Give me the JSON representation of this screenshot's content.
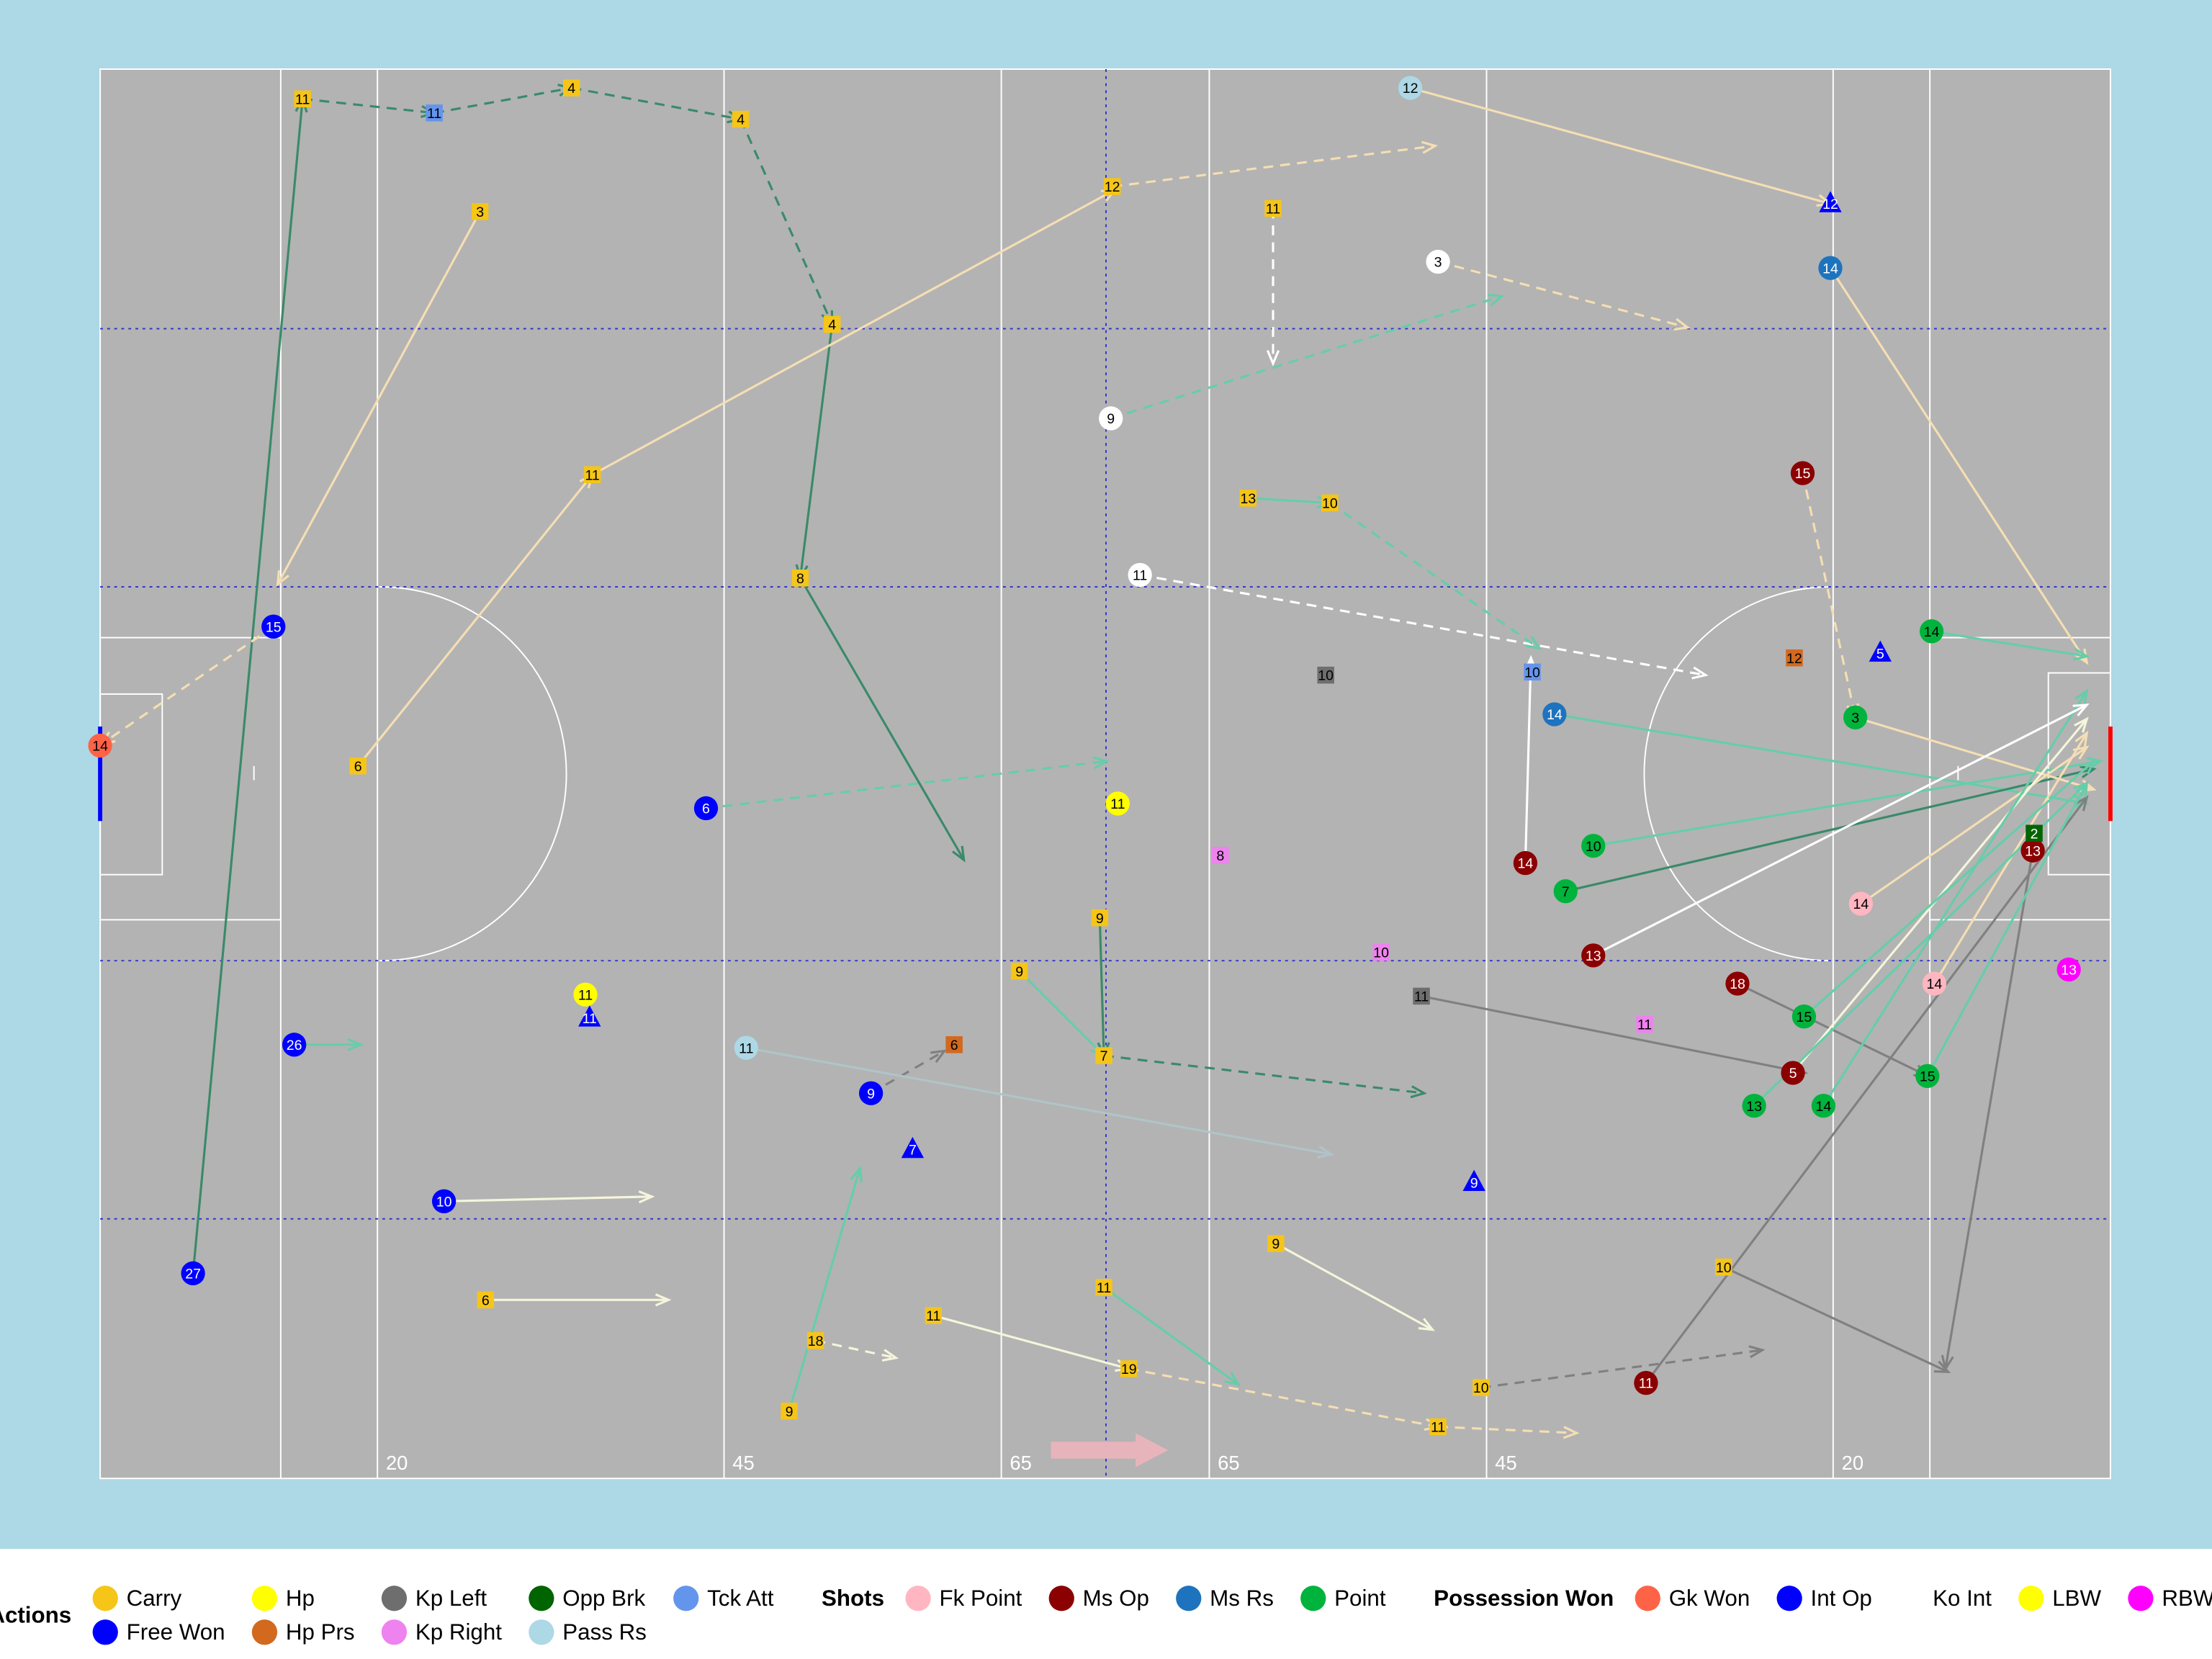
{
  "pitch": {
    "xlim": [
      0,
      145
    ],
    "ylim": [
      0,
      90
    ],
    "xticks": [
      20,
      45,
      65,
      {
        "value": 80,
        "label": "65"
      },
      {
        "value": 100,
        "label": "45"
      },
      {
        "value": 125,
        "label": "20"
      }
    ]
  },
  "actions": [
    {
      "category": "Free Won",
      "label": 27,
      "shape": "circle",
      "from": [
        6.7,
        76.9
      ],
      "to": [
        14.6,
        1.9
      ],
      "line_color": "#3a8a6a",
      "dashed": false
    },
    {
      "category": "Carry",
      "label": 11,
      "shape": "square",
      "from": [
        14.6,
        1.9
      ],
      "to": [
        24.1,
        2.8
      ],
      "line_color": "#3a8a6a",
      "dashed": true
    },
    {
      "category": "Tck Att",
      "label": 11,
      "shape": "square",
      "from": [
        24.1,
        2.8
      ],
      "to": [
        34.0,
        1.2
      ],
      "line_color": "#3a8a6a",
      "dashed": true
    },
    {
      "category": "Carry",
      "label": 4,
      "shape": "square",
      "from": [
        34.0,
        1.2
      ],
      "to": [
        46.2,
        3.2
      ],
      "line_color": "#3a8a6a",
      "dashed": true
    },
    {
      "category": "Carry",
      "label": 4,
      "shape": "square",
      "from": [
        46.2,
        3.2
      ],
      "to": [
        52.8,
        16.3
      ],
      "line_color": "#3a8a6a",
      "dashed": true
    },
    {
      "category": "Carry",
      "label": 4,
      "shape": "square",
      "from": [
        52.8,
        16.3
      ],
      "to": [
        50.5,
        32.5
      ],
      "line_color": "#3a8a6a",
      "dashed": false
    },
    {
      "category": "Carry",
      "label": 8,
      "shape": "square",
      "from": [
        50.5,
        32.5
      ],
      "to": [
        62.3,
        50.5
      ],
      "line_color": "#3a8a6a",
      "dashed": false
    },
    {
      "category": "Carry",
      "label": 3,
      "shape": "square",
      "from": [
        27.4,
        9.1
      ],
      "to": [
        12.8,
        32.9
      ],
      "line_color": "#f5deb3",
      "dashed": false
    },
    {
      "category": "Pass Rs",
      "label": 12,
      "shape": "circle",
      "from": [
        94.5,
        1.2
      ],
      "to": [
        124.8,
        8.6
      ],
      "line_color": "#f5deb3",
      "dashed": false
    },
    {
      "category": "Ko Int",
      "label": 9,
      "shape": "circle",
      "from": [
        72.9,
        22.3
      ],
      "to": [
        101.1,
        14.5
      ],
      "line_color": "#66cdaa",
      "dashed": true
    },
    {
      "category": "Ko Int",
      "label": 3,
      "shape": "circle",
      "from": [
        96.5,
        12.3
      ],
      "to": [
        114.5,
        16.5
      ],
      "line_color": "#f5deb3",
      "dashed": true
    },
    {
      "category": "Ms Rs",
      "label": 14,
      "shape": "circle",
      "from": [
        124.8,
        12.7
      ],
      "to": [
        143.3,
        37.9
      ],
      "line_color": "#f5deb3",
      "dashed": false
    },
    {
      "category": "Ms Op",
      "label": 15,
      "shape": "circle",
      "from": [
        122.8,
        25.8
      ],
      "to": [
        126.6,
        41.4
      ],
      "line_color": "#f5deb3",
      "dashed": true
    },
    {
      "category": "Ms Rs",
      "label": 14,
      "shape": "circle",
      "from": [
        104.9,
        41.2
      ],
      "to": [
        143.3,
        46.9
      ],
      "line_color": "#66cdaa",
      "dashed": false
    },
    {
      "category": "Point",
      "label": 10,
      "shape": "circle",
      "from": [
        107.7,
        49.6
      ],
      "to": [
        144.3,
        44.2
      ],
      "line_color": "#66cdaa",
      "dashed": false
    },
    {
      "category": "Point",
      "label": 7,
      "shape": "circle",
      "from": [
        105.7,
        52.5
      ],
      "to": [
        143.8,
        44.7
      ],
      "line_color": "#3a8a6a",
      "dashed": false
    },
    {
      "category": "Ms Op",
      "label": 13,
      "shape": "circle",
      "from": [
        139.4,
        49.9
      ],
      "to": [
        133.1,
        83.0
      ],
      "line_color": "#808080",
      "dashed": false
    },
    {
      "category": "Ms Op",
      "label": 11,
      "shape": "circle",
      "from": [
        111.5,
        83.9
      ],
      "to": [
        143.3,
        46.5
      ],
      "line_color": "#808080",
      "dashed": false
    },
    {
      "category": "Carry",
      "label": 10,
      "shape": "square",
      "from": [
        117.1,
        76.5
      ],
      "to": [
        133.3,
        83.2
      ],
      "line_color": "#808080",
      "dashed": false
    },
    {
      "category": "Int Op",
      "label": 6,
      "shape": "circle",
      "from": [
        43.7,
        47.2
      ],
      "to": [
        72.6,
        44.2
      ],
      "line_color": "#66cdaa",
      "dashed": true
    },
    {
      "category": "Int Op",
      "label": 9,
      "shape": "circle",
      "from": [
        55.6,
        65.4
      ],
      "to": [
        60.9,
        62.7
      ],
      "line_color": "#808080",
      "dashed": true
    },
    {
      "category": "Pass Rs",
      "label": 11,
      "shape": "circle",
      "from": [
        46.6,
        62.5
      ],
      "to": [
        88.8,
        69.3
      ],
      "line_color": "#b0c4c8",
      "dashed": false
    },
    {
      "category": "Int Op",
      "label": 10,
      "shape": "circle",
      "from": [
        24.8,
        72.3
      ],
      "to": [
        39.8,
        72.0
      ],
      "line_color": "#f5f5dc",
      "dashed": false
    },
    {
      "category": "Carry",
      "label": 6,
      "shape": "square",
      "from": [
        27.8,
        78.6
      ],
      "to": [
        41.0,
        78.6
      ],
      "line_color": "#f5f5dc",
      "dashed": false
    },
    {
      "category": "Int Op",
      "label": 26,
      "shape": "circle",
      "from": [
        14.0,
        62.3
      ],
      "to": [
        18.8,
        62.3
      ],
      "line_color": "#66cdaa",
      "dashed": false
    },
    {
      "category": "Int Op",
      "label": 15,
      "shape": "circle",
      "from": [
        12.5,
        35.6
      ],
      "to": [
        0.1,
        43.1
      ],
      "line_color": "#f5deb3",
      "dashed": true
    },
    {
      "category": "Ko Int",
      "label": 11,
      "shape": "circle",
      "from": [
        75.0,
        32.3
      ],
      "to": [
        115.8,
        38.7
      ],
      "line_color": "#ffffff",
      "dashed": true
    },
    {
      "category": "Point",
      "label": 14,
      "shape": "circle",
      "from": [
        132.1,
        35.9
      ],
      "to": [
        143.3,
        37.5
      ],
      "line_color": "#66cdaa",
      "dashed": false
    },
    {
      "category": "Point",
      "label": 3,
      "shape": "circle",
      "from": [
        126.6,
        41.4
      ],
      "to": [
        143.8,
        46.0
      ],
      "line_color": "#f5deb3",
      "dashed": false
    },
    {
      "category": "Fk Point",
      "label": 14,
      "shape": "circle",
      "from": [
        132.3,
        58.4
      ],
      "to": [
        143.3,
        42.4
      ],
      "line_color": "#f5deb3",
      "dashed": false
    },
    {
      "category": "Fk Point",
      "label": 14,
      "shape": "circle",
      "from": [
        127.0,
        53.3
      ],
      "to": [
        143.3,
        43.3
      ],
      "line_color": "#f5deb3",
      "dashed": false
    },
    {
      "category": "Ms Op",
      "label": 18,
      "shape": "circle",
      "from": [
        118.1,
        58.4
      ],
      "to": [
        131.8,
        64.3
      ],
      "line_color": "#808080",
      "dashed": false
    },
    {
      "category": "Ms Op",
      "label": 5,
      "shape": "circle",
      "from": [
        122.1,
        64.1
      ],
      "to": [
        143.3,
        41.5
      ],
      "line_color": "#f5f5dc",
      "dashed": false
    },
    {
      "category": "Point",
      "label": 13,
      "shape": "circle",
      "from": [
        119.3,
        66.2
      ],
      "to": [
        143.3,
        45.6
      ],
      "line_color": "#66cdaa",
      "dashed": false
    },
    {
      "category": "Point",
      "label": 14,
      "shape": "circle",
      "from": [
        124.3,
        66.2
      ],
      "to": [
        143.3,
        39.7
      ],
      "line_color": "#66cdaa",
      "dashed": false
    },
    {
      "category": "Point",
      "label": 15,
      "shape": "circle",
      "from": [
        122.9,
        60.5
      ],
      "to": [
        143.8,
        44.2
      ],
      "line_color": "#66cdaa",
      "dashed": false
    },
    {
      "category": "Point",
      "label": 15,
      "shape": "circle",
      "from": [
        131.8,
        64.3
      ],
      "to": [
        143.3,
        45.6
      ],
      "line_color": "#66cdaa",
      "dashed": false
    },
    {
      "category": "Ms Op",
      "label": 14,
      "shape": "circle",
      "from": [
        102.8,
        50.7
      ],
      "to": [
        103.2,
        37.6
      ],
      "line_color": "#ffffff",
      "dashed": false
    },
    {
      "category": "Ms Op",
      "label": 13,
      "shape": "circle",
      "from": [
        107.7,
        56.6
      ],
      "to": [
        143.3,
        40.6
      ],
      "line_color": "#ffffff",
      "dashed": false
    },
    {
      "category": "Kp Left",
      "label": 11,
      "shape": "square",
      "from": [
        95.3,
        59.2
      ],
      "to": [
        123.0,
        64.1
      ],
      "line_color": "#808080",
      "dashed": false
    },
    {
      "category": "Carry",
      "label": 11,
      "shape": "square",
      "from": [
        35.5,
        25.9
      ],
      "to": [
        73.2,
        7.7
      ],
      "line_color": "#f5deb3",
      "dashed": false
    },
    {
      "category": "Carry",
      "label": 6,
      "shape": "square",
      "from": [
        18.6,
        44.5
      ],
      "to": [
        35.5,
        25.9
      ],
      "line_color": "#f5deb3",
      "dashed": false
    },
    {
      "category": "Carry",
      "label": 12,
      "shape": "square",
      "from": [
        73.0,
        7.5
      ],
      "to": [
        96.3,
        4.9
      ],
      "line_color": "#f5deb3",
      "dashed": true
    },
    {
      "category": "Carry",
      "label": 11,
      "shape": "square",
      "from": [
        84.6,
        8.9
      ],
      "to": [
        84.6,
        18.8
      ],
      "line_color": "#ffffff",
      "dashed": true
    },
    {
      "category": "Carry",
      "label": 13,
      "shape": "square",
      "from": [
        82.8,
        27.4
      ],
      "to": [
        88.7,
        27.7
      ],
      "line_color": "#66cdaa",
      "dashed": false
    },
    {
      "category": "Carry",
      "label": 10,
      "shape": "square",
      "from": [
        88.7,
        27.7
      ],
      "to": [
        103.8,
        37.0
      ],
      "line_color": "#66cdaa",
      "dashed": true
    },
    {
      "category": "Carry",
      "label": 10,
      "shape": "square",
      "from": [
        99.6,
        84.2
      ],
      "to": [
        119.9,
        81.8
      ],
      "line_color": "#808080",
      "dashed": true
    },
    {
      "category": "Carry",
      "label": 11,
      "shape": "square",
      "from": [
        96.5,
        86.7
      ],
      "to": [
        106.5,
        87.1
      ],
      "line_color": "#f5deb3",
      "dashed": true
    },
    {
      "category": "Carry",
      "label": 19,
      "shape": "square",
      "from": [
        74.2,
        83.0
      ],
      "to": [
        96.5,
        86.7
      ],
      "line_color": "#f5deb3",
      "dashed": true
    },
    {
      "category": "Carry",
      "label": 11,
      "shape": "square",
      "from": [
        72.4,
        77.8
      ],
      "to": [
        82.1,
        84.0
      ],
      "line_color": "#66cdaa",
      "dashed": false
    },
    {
      "category": "Carry",
      "label": 9,
      "shape": "square",
      "from": [
        49.7,
        85.7
      ],
      "to": [
        54.8,
        70.2
      ],
      "line_color": "#66cdaa",
      "dashed": false
    },
    {
      "category": "Carry",
      "label": 18,
      "shape": "square",
      "from": [
        51.6,
        81.2
      ],
      "to": [
        57.4,
        82.3
      ],
      "line_color": "#f5f5dc",
      "dashed": true
    },
    {
      "category": "Carry",
      "label": 11,
      "shape": "square",
      "from": [
        60.1,
        79.6
      ],
      "to": [
        74.2,
        83.0
      ],
      "line_color": "#f5f5dc",
      "dashed": false
    },
    {
      "category": "Carry",
      "label": 9,
      "shape": "square",
      "from": [
        84.8,
        75.0
      ],
      "to": [
        96.1,
        80.5
      ],
      "line_color": "#f5f5dc",
      "dashed": false
    },
    {
      "category": "Carry",
      "label": 7,
      "shape": "square",
      "from": [
        72.4,
        63.0
      ],
      "to": [
        95.5,
        65.4
      ],
      "line_color": "#3a8a6a",
      "dashed": true
    },
    {
      "category": "Carry",
      "label": 9,
      "shape": "square",
      "from": [
        66.3,
        57.6
      ],
      "to": [
        72.4,
        63.0
      ],
      "line_color": "#66cdaa",
      "dashed": false
    },
    {
      "category": "Carry",
      "label": 9,
      "shape": "square",
      "from": [
        72.1,
        54.2
      ],
      "to": [
        72.4,
        63.0
      ],
      "line_color": "#3a8a6a",
      "dashed": false
    },
    {
      "category": "Gk Won",
      "label": 14,
      "shape": "circle",
      "from": [
        0.0,
        43.2
      ]
    },
    {
      "category": "Int Op",
      "label": 11,
      "shape": "triangle",
      "from": [
        35.3,
        60.6
      ]
    },
    {
      "category": "Int Op",
      "label": 7,
      "shape": "triangle",
      "from": [
        58.6,
        69.0
      ]
    },
    {
      "category": "Int Op",
      "label": 9,
      "shape": "triangle",
      "from": [
        99.1,
        71.1
      ]
    },
    {
      "category": "Int Op",
      "label": 12,
      "shape": "triangle",
      "from": [
        124.8,
        8.6
      ]
    },
    {
      "category": "Int Op",
      "label": 5,
      "shape": "triangle",
      "from": [
        128.4,
        37.3
      ]
    },
    {
      "category": "Tck Att",
      "label": 10,
      "shape": "square",
      "from": [
        103.3,
        38.5
      ]
    },
    {
      "category": "Hp",
      "label": 11,
      "shape": "circle",
      "from": [
        35.0,
        59.1
      ]
    },
    {
      "category": "Hp",
      "label": 11,
      "shape": "circle",
      "from": [
        73.4,
        46.9
      ]
    },
    {
      "category": "RBW Ov",
      "label": 13,
      "shape": "circle",
      "from": [
        142.0,
        57.5
      ]
    },
    {
      "category": "Hp Prs",
      "label": 12,
      "shape": "square",
      "from": [
        122.2,
        37.6
      ]
    },
    {
      "category": "Hp Prs",
      "label": 6,
      "shape": "square",
      "from": [
        61.6,
        62.3
      ]
    },
    {
      "category": "Kp Right",
      "label": 8,
      "shape": "square",
      "from": [
        80.8,
        50.2
      ]
    },
    {
      "category": "Kp Right",
      "label": 10,
      "shape": "square",
      "from": [
        92.4,
        56.4
      ]
    },
    {
      "category": "Kp Right",
      "label": 11,
      "shape": "square",
      "from": [
        111.4,
        61.0
      ]
    },
    {
      "category": "Opp Brk",
      "label": 2,
      "shape": "square",
      "from": [
        139.5,
        48.8
      ]
    },
    {
      "category": "Kp Left",
      "label": 10,
      "shape": "square",
      "from": [
        88.4,
        38.7
      ]
    }
  ],
  "legend": [
    {
      "title": "Actions",
      "items": [
        {
          "name": "Carry",
          "color": "#f5c518"
        },
        {
          "name": "Free Won",
          "color": "#0000ff"
        },
        {
          "name": "Hp",
          "color": "#ffff00"
        },
        {
          "name": "Hp Prs",
          "color": "#d2691e"
        },
        {
          "name": "Kp Left",
          "color": "#6e6e6e"
        },
        {
          "name": "Kp Right",
          "color": "#ee82ee"
        },
        {
          "name": "Opp Brk",
          "color": "#006400"
        },
        {
          "name": "Pass Rs",
          "color": "#add8e6"
        },
        {
          "name": "Tck Att",
          "color": "#6495ed"
        }
      ]
    },
    {
      "title": "Shots",
      "items": [
        {
          "name": "Fk Point",
          "color": "#ffb6c1"
        },
        {
          "name": "Ms Op",
          "color": "#8b0000"
        },
        {
          "name": "Ms Rs",
          "color": "#1e73be"
        },
        {
          "name": "Point",
          "color": "#00b33c"
        }
      ]
    },
    {
      "title": "Possession Won",
      "items": [
        {
          "name": "Gk Won",
          "color": "#ff6347"
        },
        {
          "name": "Int Op",
          "color": "#0000ff"
        },
        {
          "name": "Ko Int",
          "color": "#ffffff"
        },
        {
          "name": "LBW",
          "color": "#ffff00"
        },
        {
          "name": "RBW Ov",
          "color": "#ff00ff"
        }
      ]
    }
  ]
}
